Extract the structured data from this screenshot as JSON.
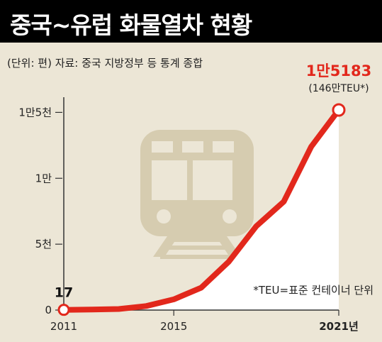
{
  "title": "중국~유럽 화물열차 현황",
  "unit_source": "(단위: 편)  자료: 중국 지방정부 등 통계 종합",
  "footnote": "*TEU=표준 컨테이너 단위",
  "illustration_icon": "train-icon",
  "colors": {
    "background": "#ece6d6",
    "title_bar": "#000000",
    "line": "#e2281c",
    "area_fill": "#ffffff",
    "train": "#d6ccb0",
    "highlight_label": "#e2281c"
  },
  "chart_data": {
    "type": "line",
    "x": [
      2011,
      2012,
      2013,
      2014,
      2015,
      2016,
      2017,
      2018,
      2019,
      2020,
      2021
    ],
    "values": [
      17,
      42,
      80,
      308,
      815,
      1702,
      3673,
      6363,
      8225,
      12406,
      15183
    ],
    "ylim": [
      0,
      15183
    ],
    "y_ticks": [
      {
        "value": 0,
        "label": "0"
      },
      {
        "value": 5000,
        "label": "5천"
      },
      {
        "value": 10000,
        "label": "1만"
      },
      {
        "value": 15000,
        "label": "1만5천"
      }
    ],
    "x_tick_labels": [
      {
        "x": 2011,
        "label": "2011"
      },
      {
        "x": 2015,
        "label": "2015"
      },
      {
        "x": 2021,
        "label": "2021년"
      }
    ],
    "annotations": {
      "start_value": "17",
      "end_value": "1만5183",
      "end_note": "(146만TEU*)"
    },
    "grid": false,
    "legend": "none"
  }
}
